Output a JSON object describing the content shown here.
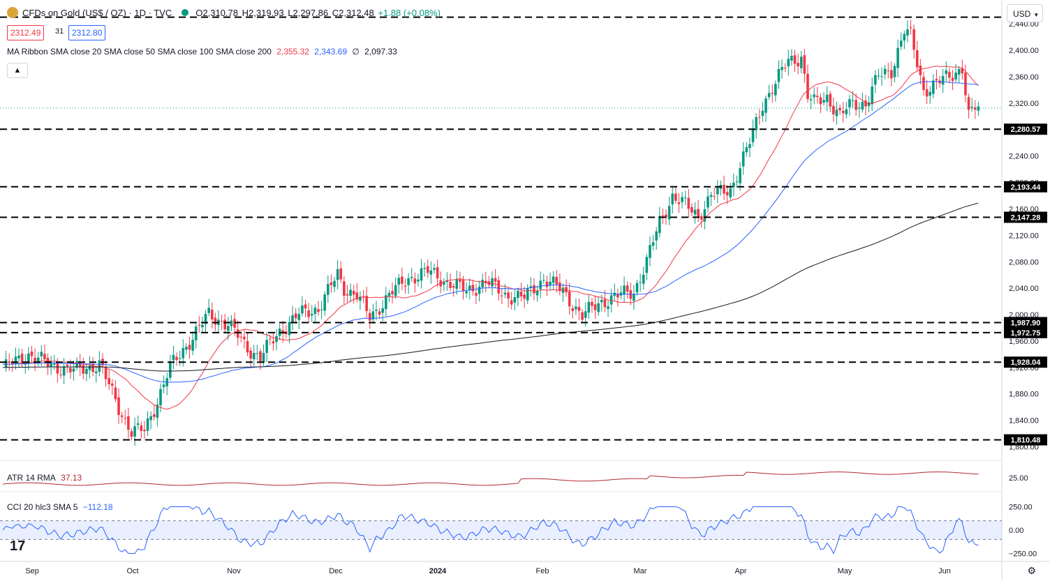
{
  "header": {
    "title": "CFDs on Gold (US$ / OZ) · 1D · TVC",
    "open": "O2,310.78",
    "high": "H2,319.93",
    "low": "L2,297.86",
    "close": "C2,312.48",
    "change": "+1.88 (+0.08%)",
    "bid": "2312.49",
    "spread": "31",
    "ask": "2312.80"
  },
  "indicators": {
    "ma_label": "MA Ribbon SMA close 20 SMA close 50 SMA close 100 SMA close 200",
    "ma_v1": "2,355.32",
    "ma_v2": "2,343.69",
    "ma_v3": "∅",
    "ma_v4": "2,097.33",
    "atr_label": "ATR 14 RMA",
    "atr_value": "37.13",
    "cci_label": "CCI 20 hlc3 SMA 5",
    "cci_value": "−112.18"
  },
  "currency": "USD",
  "colors": {
    "up": "#089981",
    "down": "#f23645",
    "sma20": "#f23645",
    "sma50": "#2962ff",
    "sma200": "#131722",
    "cci": "#2962ff",
    "atr": "#b22833"
  },
  "chart_data": {
    "type": "candlestick",
    "price_ticks": [
      "2,440.00",
      "2,400.00",
      "2,360.00",
      "2,320.00",
      "2,280.00",
      "2,240.00",
      "2,200.00",
      "2,160.00",
      "2,120.00",
      "2,080.00",
      "2,040.00",
      "2,000.00",
      "1,960.00",
      "1,920.00",
      "1,880.00",
      "1,840.00",
      "1,800.00"
    ],
    "x_ticks": [
      "Sep",
      "Oct",
      "Nov",
      "Dec",
      "2024",
      "Feb",
      "Mar",
      "Apr",
      "May",
      "Jun"
    ],
    "levels": [
      {
        "value": 2450.07,
        "label": ""
      },
      {
        "value": 2280.57,
        "label": "2,280.57"
      },
      {
        "value": 2193.44,
        "label": "2,193.44"
      },
      {
        "value": 2147.28,
        "label": "2,147.28"
      },
      {
        "value": 1987.9,
        "label": "1,987.90"
      },
      {
        "value": 1972.75,
        "label": "1,972.75"
      },
      {
        "value": 1928.04,
        "label": "1,928.04"
      },
      {
        "value": 1810.48,
        "label": "1,810.48"
      }
    ],
    "ylim": [
      1790,
      2455
    ],
    "close_anchors": [
      [
        0,
        1918
      ],
      [
        8,
        1940
      ],
      [
        14,
        1925
      ],
      [
        22,
        1915
      ],
      [
        30,
        1925
      ],
      [
        36,
        1860
      ],
      [
        40,
        1822
      ],
      [
        44,
        1825
      ],
      [
        48,
        1870
      ],
      [
        52,
        1920
      ],
      [
        58,
        1960
      ],
      [
        64,
        2000
      ],
      [
        70,
        1985
      ],
      [
        76,
        1950
      ],
      [
        80,
        1935
      ],
      [
        86,
        1975
      ],
      [
        92,
        2000
      ],
      [
        98,
        2010
      ],
      [
        104,
        2060
      ],
      [
        106,
        2040
      ],
      [
        110,
        2030
      ],
      [
        114,
        1995
      ],
      [
        120,
        2030
      ],
      [
        126,
        2055
      ],
      [
        132,
        2065
      ],
      [
        138,
        2050
      ],
      [
        144,
        2035
      ],
      [
        150,
        2050
      ],
      [
        156,
        2030
      ],
      [
        162,
        2025
      ],
      [
        168,
        2055
      ],
      [
        174,
        2035
      ],
      [
        180,
        1998
      ],
      [
        186,
        2020
      ],
      [
        192,
        2030
      ],
      [
        196,
        2035
      ],
      [
        200,
        2080
      ],
      [
        204,
        2140
      ],
      [
        208,
        2180
      ],
      [
        212,
        2165
      ],
      [
        216,
        2150
      ],
      [
        220,
        2180
      ],
      [
        226,
        2190
      ],
      [
        232,
        2260
      ],
      [
        236,
        2320
      ],
      [
        240,
        2350
      ],
      [
        244,
        2385
      ],
      [
        248,
        2390
      ],
      [
        250,
        2330
      ],
      [
        252,
        2320
      ],
      [
        256,
        2330
      ],
      [
        260,
        2300
      ],
      [
        264,
        2320
      ],
      [
        268,
        2320
      ],
      [
        272,
        2360
      ],
      [
        276,
        2370
      ],
      [
        278,
        2400
      ],
      [
        280,
        2430
      ],
      [
        282,
        2420
      ],
      [
        284,
        2380
      ],
      [
        286,
        2340
      ],
      [
        290,
        2350
      ],
      [
        294,
        2360
      ],
      [
        298,
        2375
      ],
      [
        300,
        2300
      ],
      [
        302,
        2312
      ]
    ],
    "atr": {
      "label": "ATR 14 RMA",
      "value": 37.13,
      "ticks": [
        "25.00"
      ]
    },
    "cci": {
      "label": "CCI 20 hlc3 SMA 5",
      "value": -112.18,
      "bands": [
        100,
        -100
      ],
      "ticks": [
        "250.00",
        "0.00",
        "−250.00"
      ]
    }
  }
}
